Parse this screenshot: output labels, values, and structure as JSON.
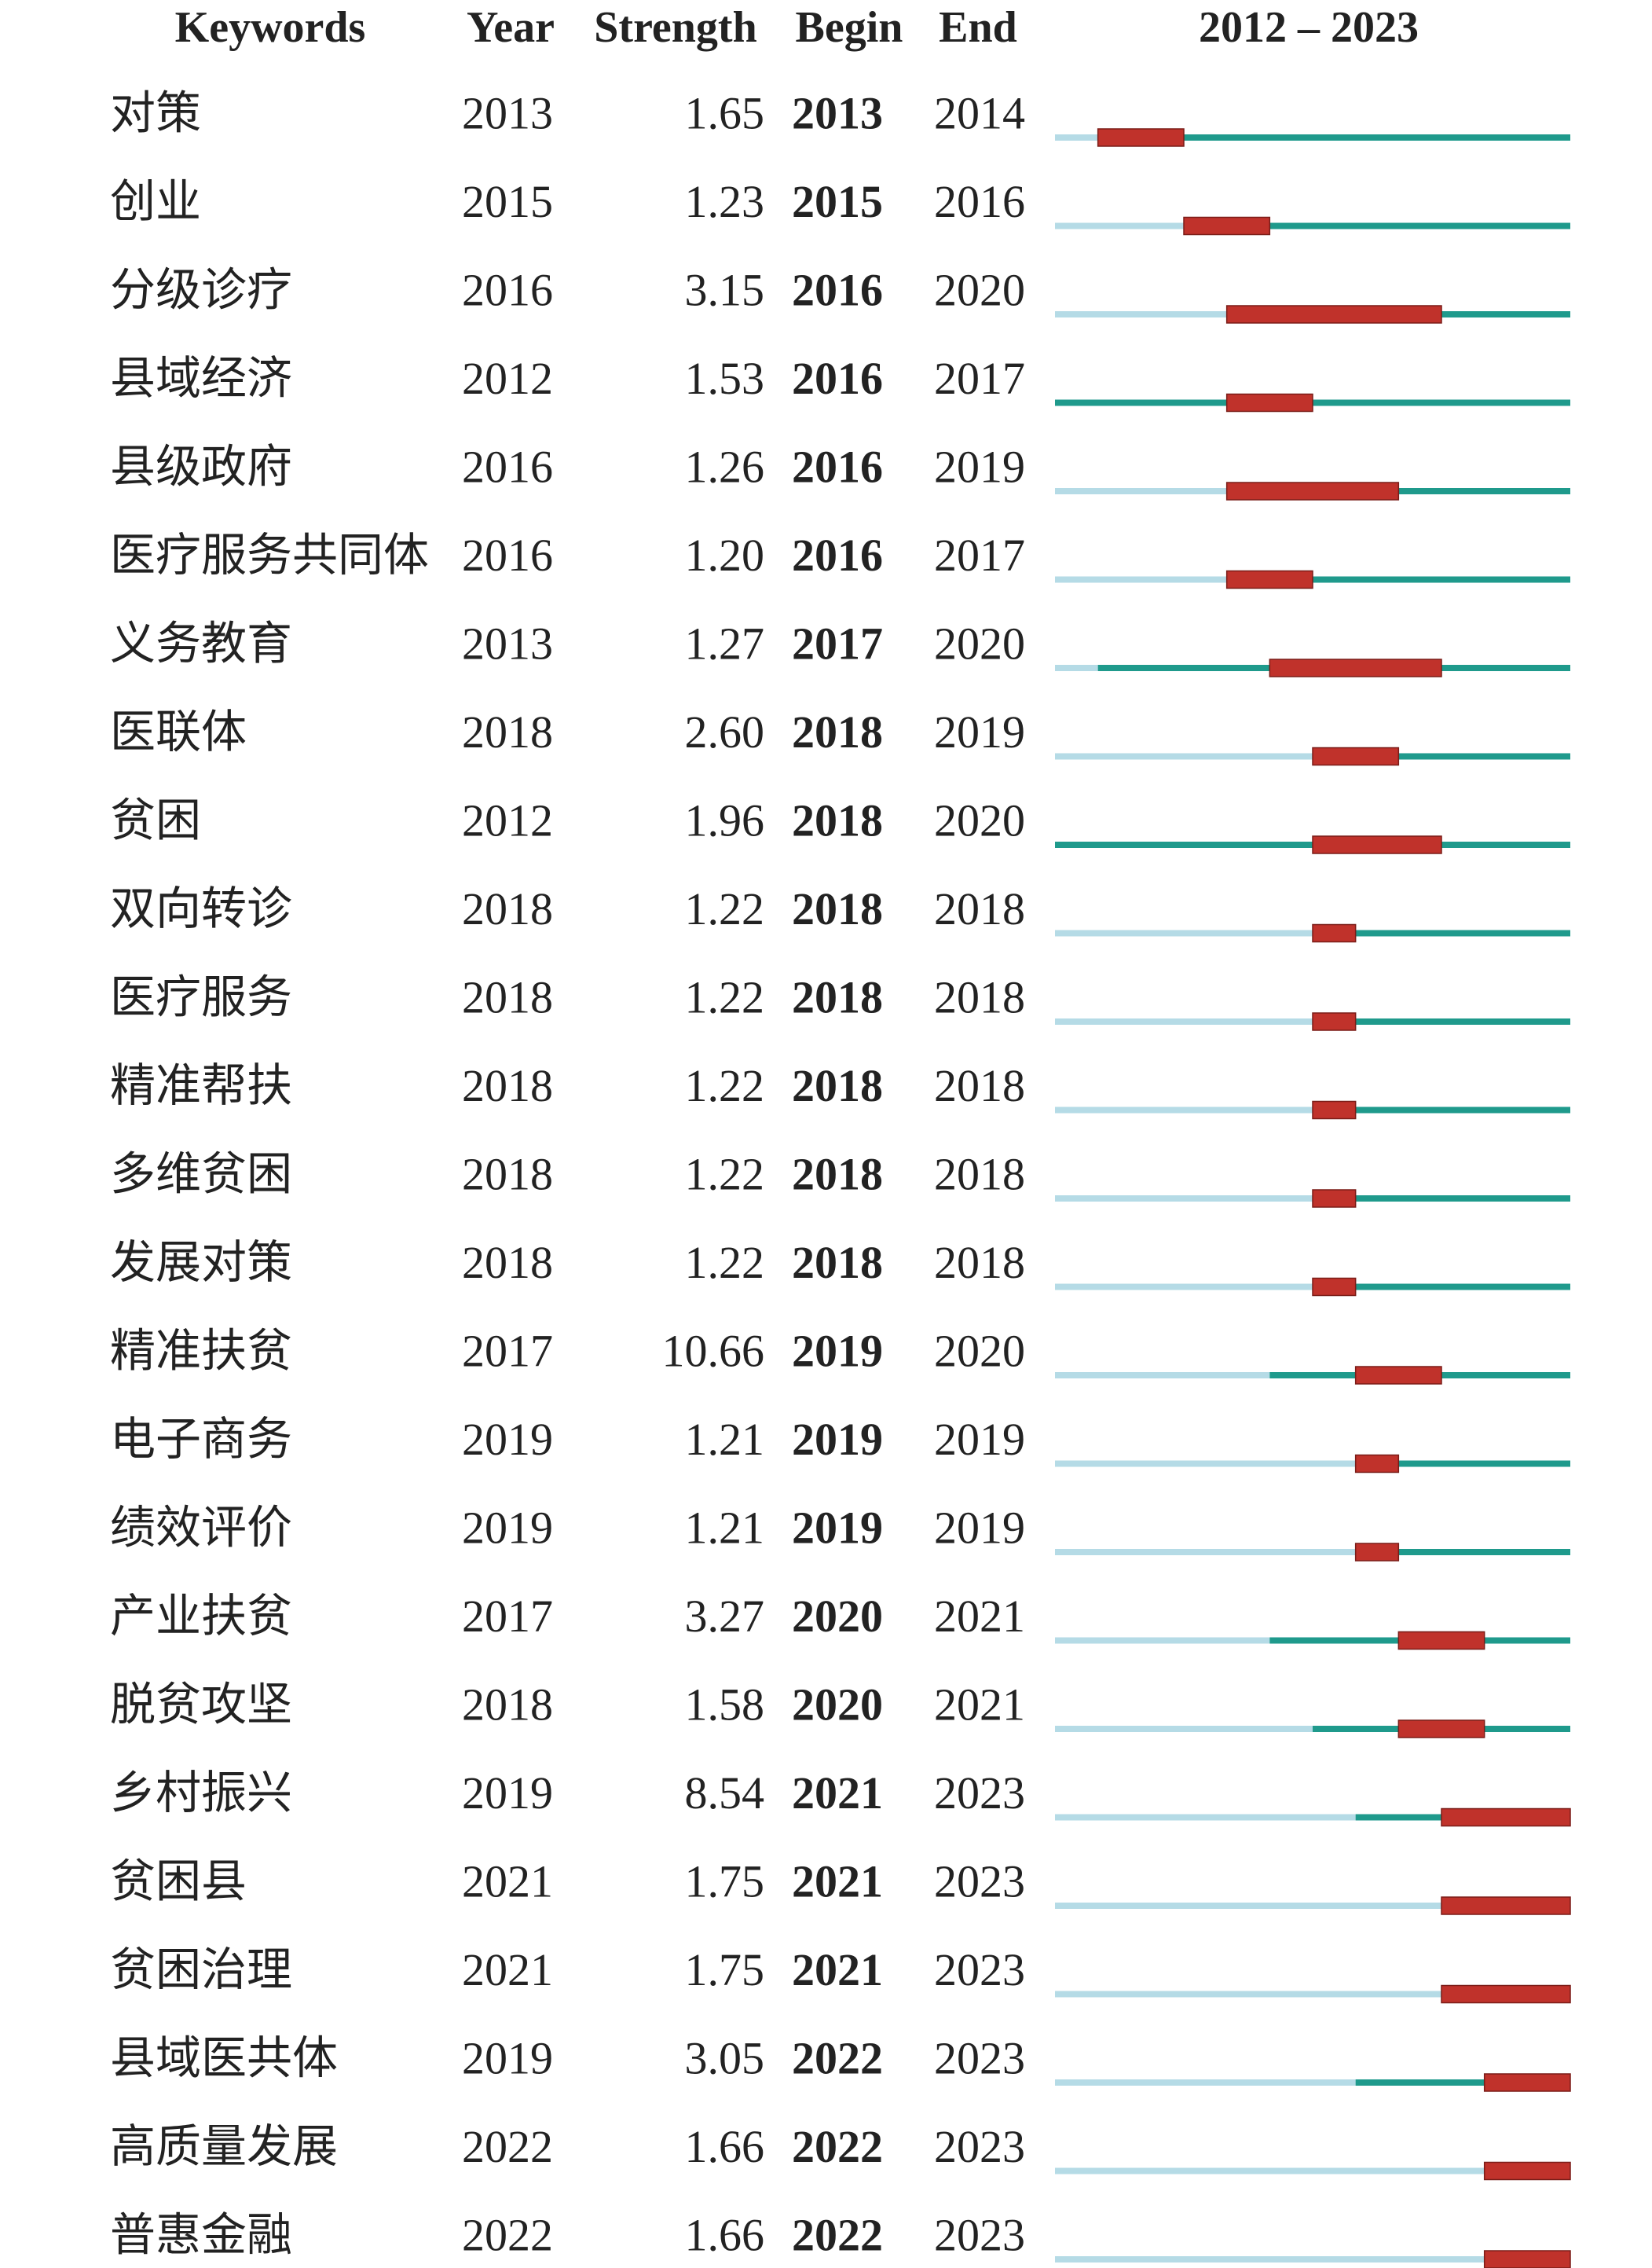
{
  "chart_data": {
    "type": "burst",
    "columns": [
      "Keywords",
      "Year",
      "Strength",
      "Begin",
      "End"
    ],
    "timeline_label": "2012 – 2023",
    "xlim": [
      2012,
      2023
    ],
    "colors": {
      "before": "#b5dbe6",
      "active": "#1f9a8c",
      "burst": "#c0322b"
    },
    "categories": [
      "对策",
      "创业",
      "分级诊疗",
      "县域经济",
      "县级政府",
      "医疗服务共同体",
      "义务教育",
      "医联体",
      "贫困",
      "双向转诊",
      "医疗服务",
      "精准帮扶",
      "多维贫困",
      "发展对策",
      "精准扶贫",
      "电子商务",
      "绩效评价",
      "产业扶贫",
      "脱贫攻坚",
      "乡村振兴",
      "贫困县",
      "贫困治理",
      "县域医共体",
      "高质量发展",
      "普惠金融"
    ],
    "year": [
      2013,
      2015,
      2016,
      2012,
      2016,
      2016,
      2013,
      2018,
      2012,
      2018,
      2018,
      2018,
      2018,
      2018,
      2017,
      2019,
      2019,
      2017,
      2018,
      2019,
      2021,
      2021,
      2019,
      2022,
      2022
    ],
    "values": [
      1.65,
      1.23,
      3.15,
      1.53,
      1.26,
      1.2,
      1.27,
      2.6,
      1.96,
      1.22,
      1.22,
      1.22,
      1.22,
      1.22,
      10.66,
      1.21,
      1.21,
      3.27,
      1.58,
      8.54,
      1.75,
      1.75,
      3.05,
      1.66,
      1.66
    ],
    "value_labels": [
      "1.65",
      "1.23",
      "3.15",
      "1.53",
      "1.26",
      "1.20",
      "1.27",
      "2.60",
      "1.96",
      "1.22",
      "1.22",
      "1.22",
      "1.22",
      "1.22",
      "10.66",
      "1.21",
      "1.21",
      "3.27",
      "1.58",
      "8.54",
      "1.75",
      "1.75",
      "3.05",
      "1.66",
      "1.66"
    ],
    "begin": [
      2013,
      2015,
      2016,
      2016,
      2016,
      2016,
      2017,
      2018,
      2018,
      2018,
      2018,
      2018,
      2018,
      2018,
      2019,
      2019,
      2019,
      2020,
      2020,
      2021,
      2021,
      2021,
      2022,
      2022,
      2022
    ],
    "end": [
      2014,
      2016,
      2020,
      2017,
      2019,
      2017,
      2020,
      2019,
      2020,
      2018,
      2018,
      2018,
      2018,
      2018,
      2020,
      2019,
      2019,
      2021,
      2021,
      2023,
      2023,
      2023,
      2023,
      2023,
      2023
    ]
  }
}
